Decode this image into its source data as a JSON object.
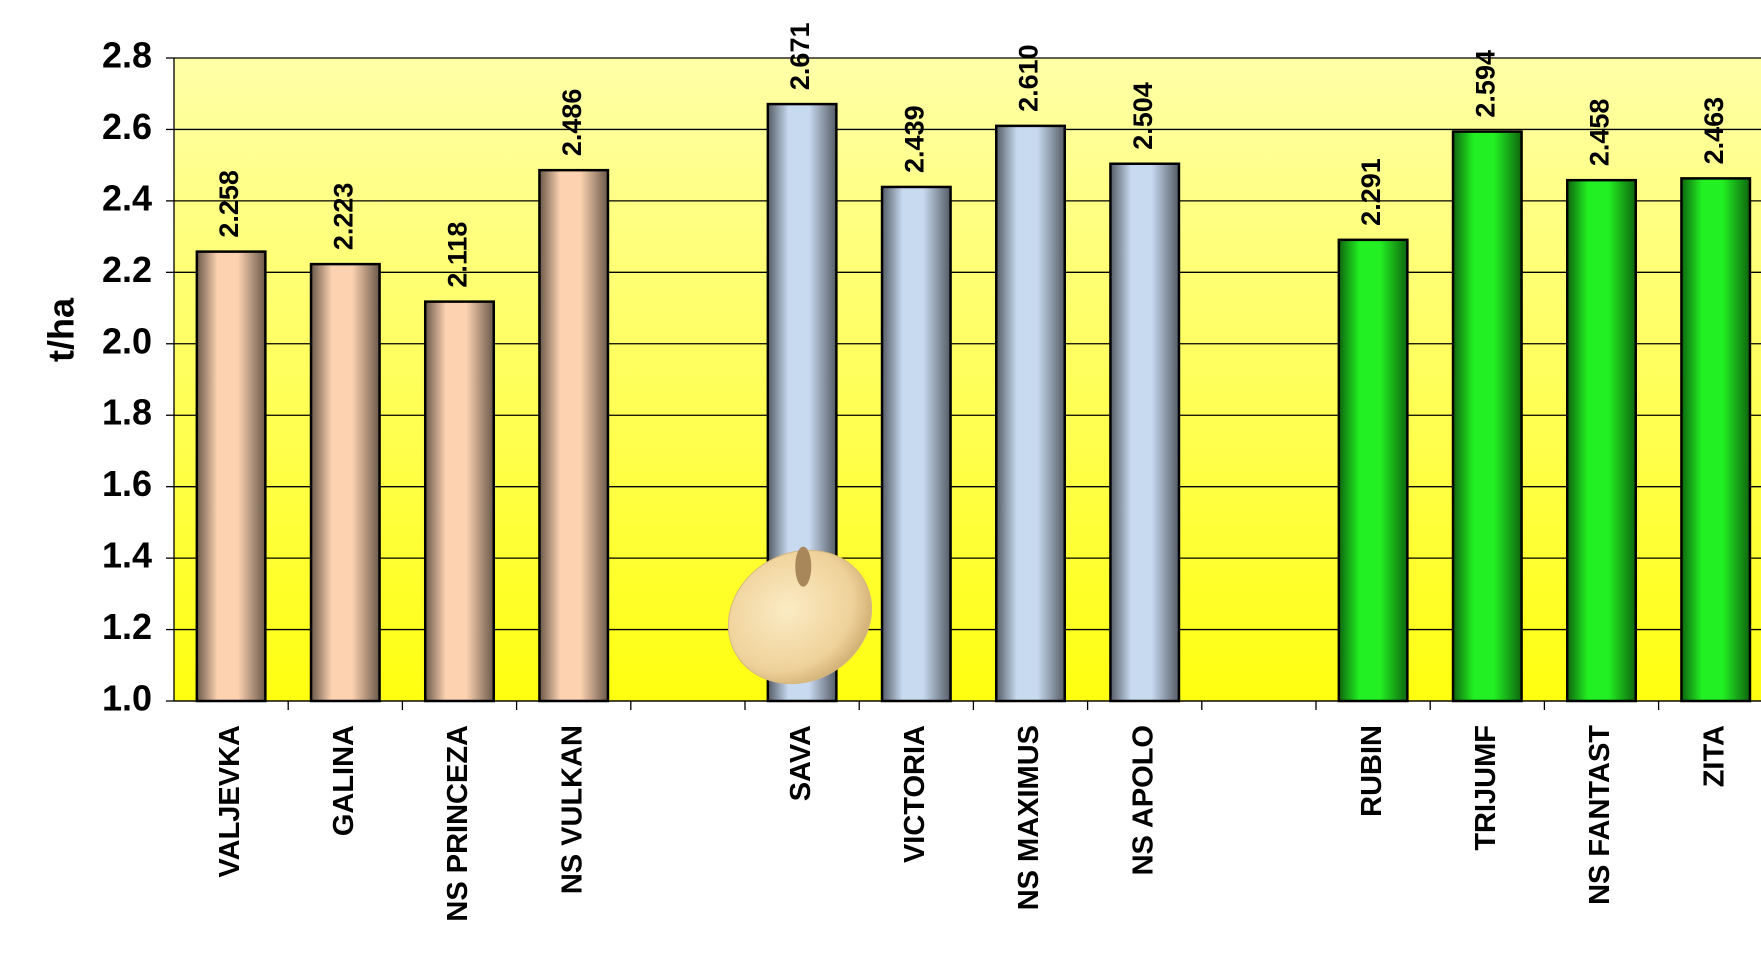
{
  "chart_data": {
    "type": "bar",
    "y_label": "t/ha",
    "categories": [
      "VALJEVKA",
      "GALINA",
      "NS PRINCEZA",
      "NS VULKAN",
      null,
      "SAVA",
      "VICTORIA",
      "NS MAXIMUS",
      "NS APOLO",
      null,
      "RUBIN",
      "TRIJUMF",
      "NS FANTAST",
      "ZITA"
    ],
    "values": [
      2.258,
      2.223,
      2.118,
      2.486,
      null,
      2.671,
      2.439,
      2.61,
      2.504,
      null,
      2.291,
      2.594,
      2.458,
      2.463
    ],
    "value_labels": [
      "2.258",
      "2.223",
      "2.118",
      "2.486",
      null,
      "2.671",
      "2.439",
      "2.610",
      "2.504",
      null,
      "2.291",
      "2.594",
      "2.458",
      "2.463"
    ],
    "colors": [
      "#fcd2b0",
      "#fcd2b0",
      "#fcd2b0",
      "#fcd2b0",
      null,
      "#c8daf0",
      "#c8daf0",
      "#c8daf0",
      "#c8daf0",
      null,
      "#22f022",
      "#22f022",
      "#22f022",
      "#22f022"
    ],
    "ylim": [
      1.0,
      2.8
    ],
    "yticks": [
      {
        "value": 1.0,
        "label": "1.0"
      },
      1.2,
      1.4,
      1.6,
      1.8,
      {
        "value": 2.0,
        "label": "2.0"
      },
      2.2,
      2.4,
      2.6,
      2.8
    ],
    "grid": true
  }
}
